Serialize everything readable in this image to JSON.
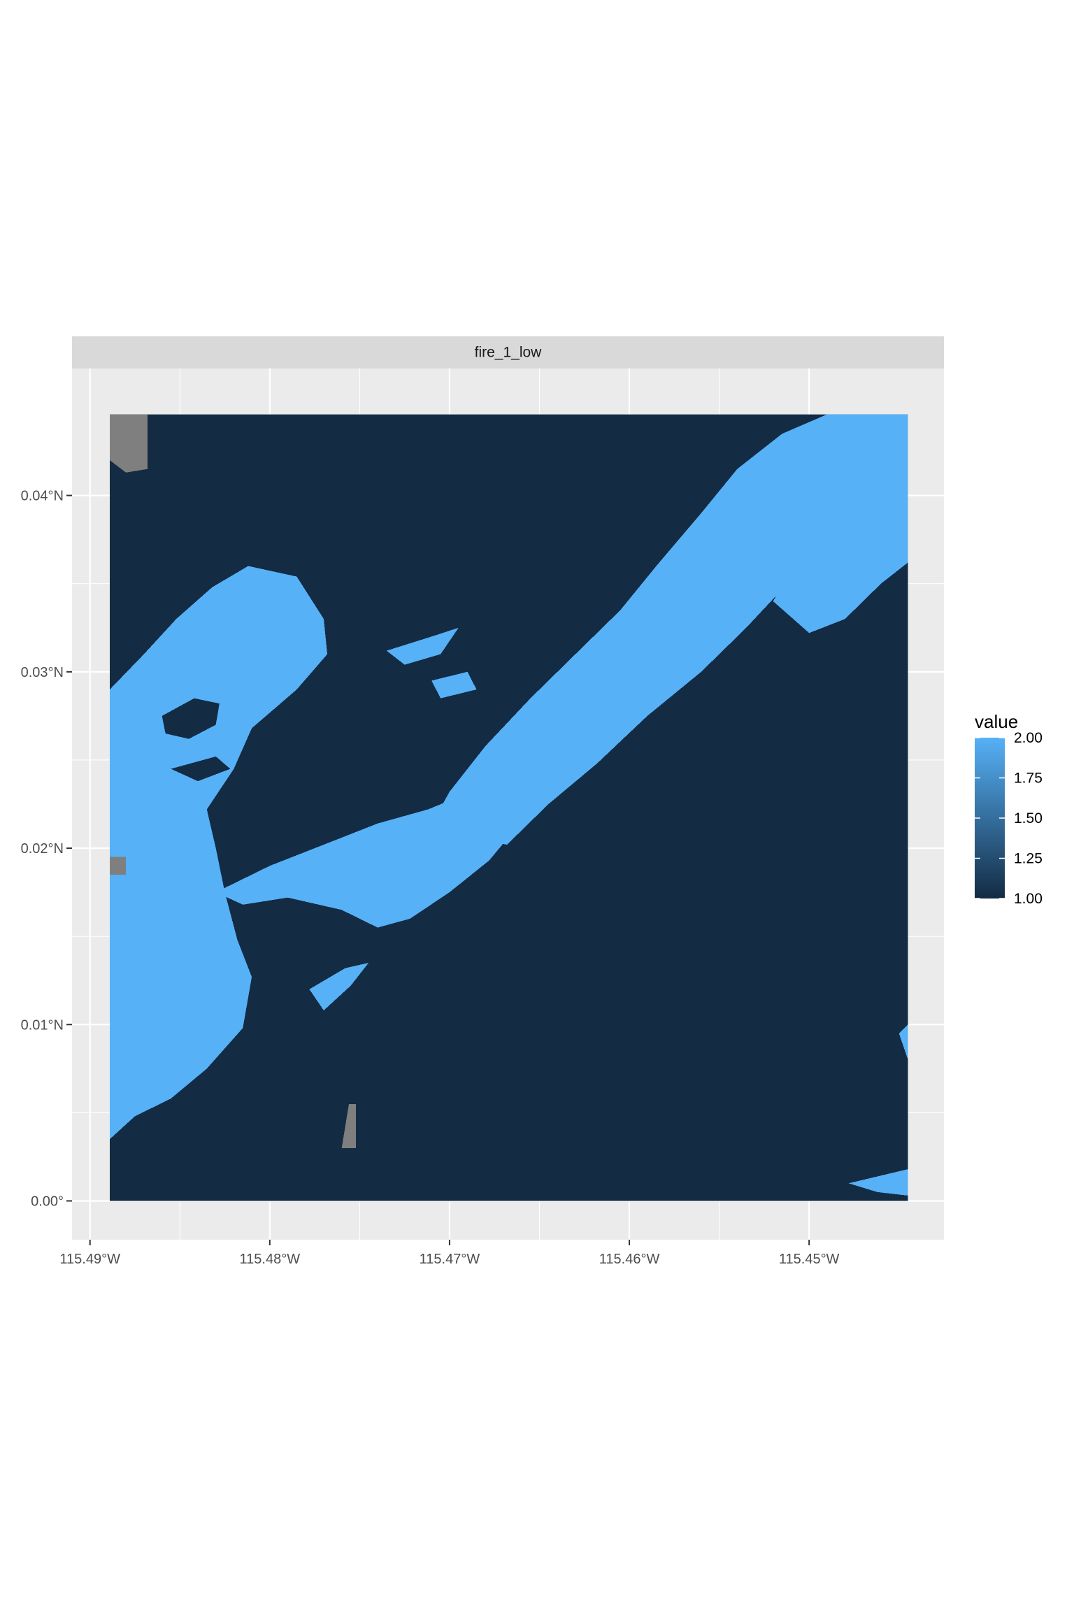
{
  "chart_data": {
    "type": "heatmap",
    "facet_title": "fire_1_low",
    "x_ticks": [
      "115.49°W",
      "115.48°W",
      "115.47°W",
      "115.46°W",
      "115.45°W"
    ],
    "x_tick_values": [
      -115.49,
      -115.48,
      -115.47,
      -115.46,
      -115.45
    ],
    "y_ticks": [
      "0.00°",
      "0.01°N",
      "0.02°N",
      "0.03°N",
      "0.04°N"
    ],
    "y_tick_values": [
      0.0,
      0.01,
      0.02,
      0.03,
      0.04
    ],
    "xlim": [
      -115.491,
      -115.4425
    ],
    "ylim": [
      -0.0022,
      0.0472
    ],
    "raster_extent": {
      "lon_min": -115.4889,
      "lon_max": -115.4445,
      "lat_min": 0.0,
      "lat_max": 0.0446
    },
    "legend": {
      "title": "value",
      "labels": [
        "2.00",
        "1.75",
        "1.50",
        "1.25",
        "1.00"
      ],
      "values": [
        2.0,
        1.75,
        1.5,
        1.25,
        1.0
      ],
      "low_color": "#132B43",
      "high_color": "#56B1F7"
    },
    "na_color": "#7F7F7F",
    "grid": true,
    "panel_background": "#EBEBEB",
    "fill_value_1": 1,
    "fill_value_2": 2,
    "burned_regions_value_2": [
      {
        "name": "west-band",
        "lonlat": [
          [
            -115.4889,
            0.0035
          ],
          [
            -115.4875,
            0.0048
          ],
          [
            -115.4855,
            0.0058
          ],
          [
            -115.4835,
            0.0075
          ],
          [
            -115.4815,
            0.0098
          ],
          [
            -115.481,
            0.0127
          ],
          [
            -115.4818,
            0.0148
          ],
          [
            -115.4825,
            0.0175
          ],
          [
            -115.483,
            0.02
          ],
          [
            -115.4835,
            0.0222
          ],
          [
            -115.482,
            0.0245
          ],
          [
            -115.481,
            0.0268
          ],
          [
            -115.4785,
            0.029
          ],
          [
            -115.4768,
            0.031
          ],
          [
            -115.477,
            0.033
          ],
          [
            -115.4785,
            0.0354
          ],
          [
            -115.4812,
            0.036
          ],
          [
            -115.4832,
            0.0348
          ],
          [
            -115.4852,
            0.033
          ],
          [
            -115.487,
            0.031
          ],
          [
            -115.4889,
            0.029
          ]
        ]
      },
      {
        "name": "middle-band",
        "lonlat": [
          [
            -115.483,
            0.0175
          ],
          [
            -115.48,
            0.019
          ],
          [
            -115.477,
            0.0202
          ],
          [
            -115.474,
            0.0214
          ],
          [
            -115.4712,
            0.0222
          ],
          [
            -115.4688,
            0.0232
          ],
          [
            -115.4668,
            0.0234
          ],
          [
            -115.466,
            0.0215
          ],
          [
            -115.4678,
            0.0193
          ],
          [
            -115.47,
            0.0175
          ],
          [
            -115.4722,
            0.016
          ],
          [
            -115.474,
            0.0155
          ],
          [
            -115.476,
            0.0165
          ],
          [
            -115.479,
            0.0172
          ],
          [
            -115.4815,
            0.0168
          ]
        ]
      },
      {
        "name": "lower-middle-blob",
        "lonlat": [
          [
            -115.477,
            0.0108
          ],
          [
            -115.4755,
            0.0122
          ],
          [
            -115.4745,
            0.0135
          ],
          [
            -115.4758,
            0.0132
          ],
          [
            -115.4778,
            0.012
          ]
        ]
      },
      {
        "name": "north-ridge",
        "lonlat": [
          [
            -115.4668,
            0.0202
          ],
          [
            -115.4645,
            0.0225
          ],
          [
            -115.4618,
            0.0248
          ],
          [
            -115.459,
            0.0275
          ],
          [
            -115.456,
            0.03
          ],
          [
            -115.4535,
            0.0325
          ],
          [
            -115.4512,
            0.035
          ],
          [
            -115.4495,
            0.038
          ],
          [
            -115.447,
            0.0405
          ],
          [
            -115.4445,
            0.0446
          ],
          [
            -115.449,
            0.0446
          ],
          [
            -115.4515,
            0.0435
          ],
          [
            -115.454,
            0.0415
          ],
          [
            -115.456,
            0.039
          ],
          [
            -115.4585,
            0.036
          ],
          [
            -115.4605,
            0.0335
          ],
          [
            -115.463,
            0.031
          ],
          [
            -115.4655,
            0.0285
          ],
          [
            -115.468,
            0.0258
          ],
          [
            -115.47,
            0.0232
          ],
          [
            -115.4712,
            0.021
          ]
        ]
      },
      {
        "name": "east-ridge",
        "lonlat": [
          [
            -115.452,
            0.034
          ],
          [
            -115.45,
            0.0322
          ],
          [
            -115.448,
            0.033
          ],
          [
            -115.446,
            0.035
          ],
          [
            -115.4445,
            0.0362
          ],
          [
            -115.4445,
            0.0446
          ],
          [
            -115.447,
            0.0415
          ],
          [
            -115.4495,
            0.0385
          ]
        ]
      },
      {
        "name": "small-north-patch",
        "lonlat": [
          [
            -115.4735,
            0.0312
          ],
          [
            -115.471,
            0.032
          ],
          [
            -115.4695,
            0.0325
          ],
          [
            -115.4705,
            0.031
          ],
          [
            -115.4725,
            0.0304
          ]
        ]
      },
      {
        "name": "small-north-patch-2",
        "lonlat": [
          [
            -115.471,
            0.0295
          ],
          [
            -115.469,
            0.03
          ],
          [
            -115.4685,
            0.029
          ],
          [
            -115.4705,
            0.0285
          ]
        ]
      },
      {
        "name": "southeast-corner",
        "lonlat": [
          [
            -115.4445,
            0.0018
          ],
          [
            -115.4478,
            0.001
          ],
          [
            -115.4462,
            0.0005
          ],
          [
            -115.4445,
            0.0003
          ]
        ]
      },
      {
        "name": "east-edge-bits",
        "lonlat": [
          [
            -115.4445,
            0.01
          ],
          [
            -115.445,
            0.0095
          ],
          [
            -115.4445,
            0.008
          ]
        ]
      }
    ],
    "holes_value_1": [
      {
        "name": "west-hole-1",
        "lonlat": [
          [
            -115.486,
            0.0275
          ],
          [
            -115.4842,
            0.0285
          ],
          [
            -115.4828,
            0.0282
          ],
          [
            -115.483,
            0.027
          ],
          [
            -115.4845,
            0.0262
          ],
          [
            -115.4858,
            0.0265
          ]
        ]
      },
      {
        "name": "west-hole-2",
        "lonlat": [
          [
            -115.4855,
            0.0245
          ],
          [
            -115.483,
            0.0252
          ],
          [
            -115.4822,
            0.0245
          ],
          [
            -115.484,
            0.0238
          ]
        ]
      },
      {
        "name": "west-hole-3",
        "lonlat": [
          [
            -115.4815,
            0.0205
          ],
          [
            -115.4795,
            0.021
          ],
          [
            -115.478,
            0.02
          ],
          [
            -115.48,
            0.0195
          ]
        ]
      }
    ],
    "na_regions": [
      {
        "name": "top-left-na",
        "lonlat": [
          [
            -115.4889,
            0.0446
          ],
          [
            -115.4868,
            0.0446
          ],
          [
            -115.4868,
            0.0415
          ],
          [
            -115.488,
            0.0413
          ],
          [
            -115.4889,
            0.042
          ]
        ]
      },
      {
        "name": "left-edge-na",
        "lonlat": [
          [
            -115.4889,
            0.0195
          ],
          [
            -115.488,
            0.0195
          ],
          [
            -115.488,
            0.0185
          ],
          [
            -115.4889,
            0.0185
          ]
        ]
      },
      {
        "name": "bottom-na",
        "lonlat": [
          [
            -115.4756,
            0.0055
          ],
          [
            -115.4752,
            0.0055
          ],
          [
            -115.4752,
            0.003
          ],
          [
            -115.476,
            0.003
          ]
        ]
      }
    ]
  }
}
